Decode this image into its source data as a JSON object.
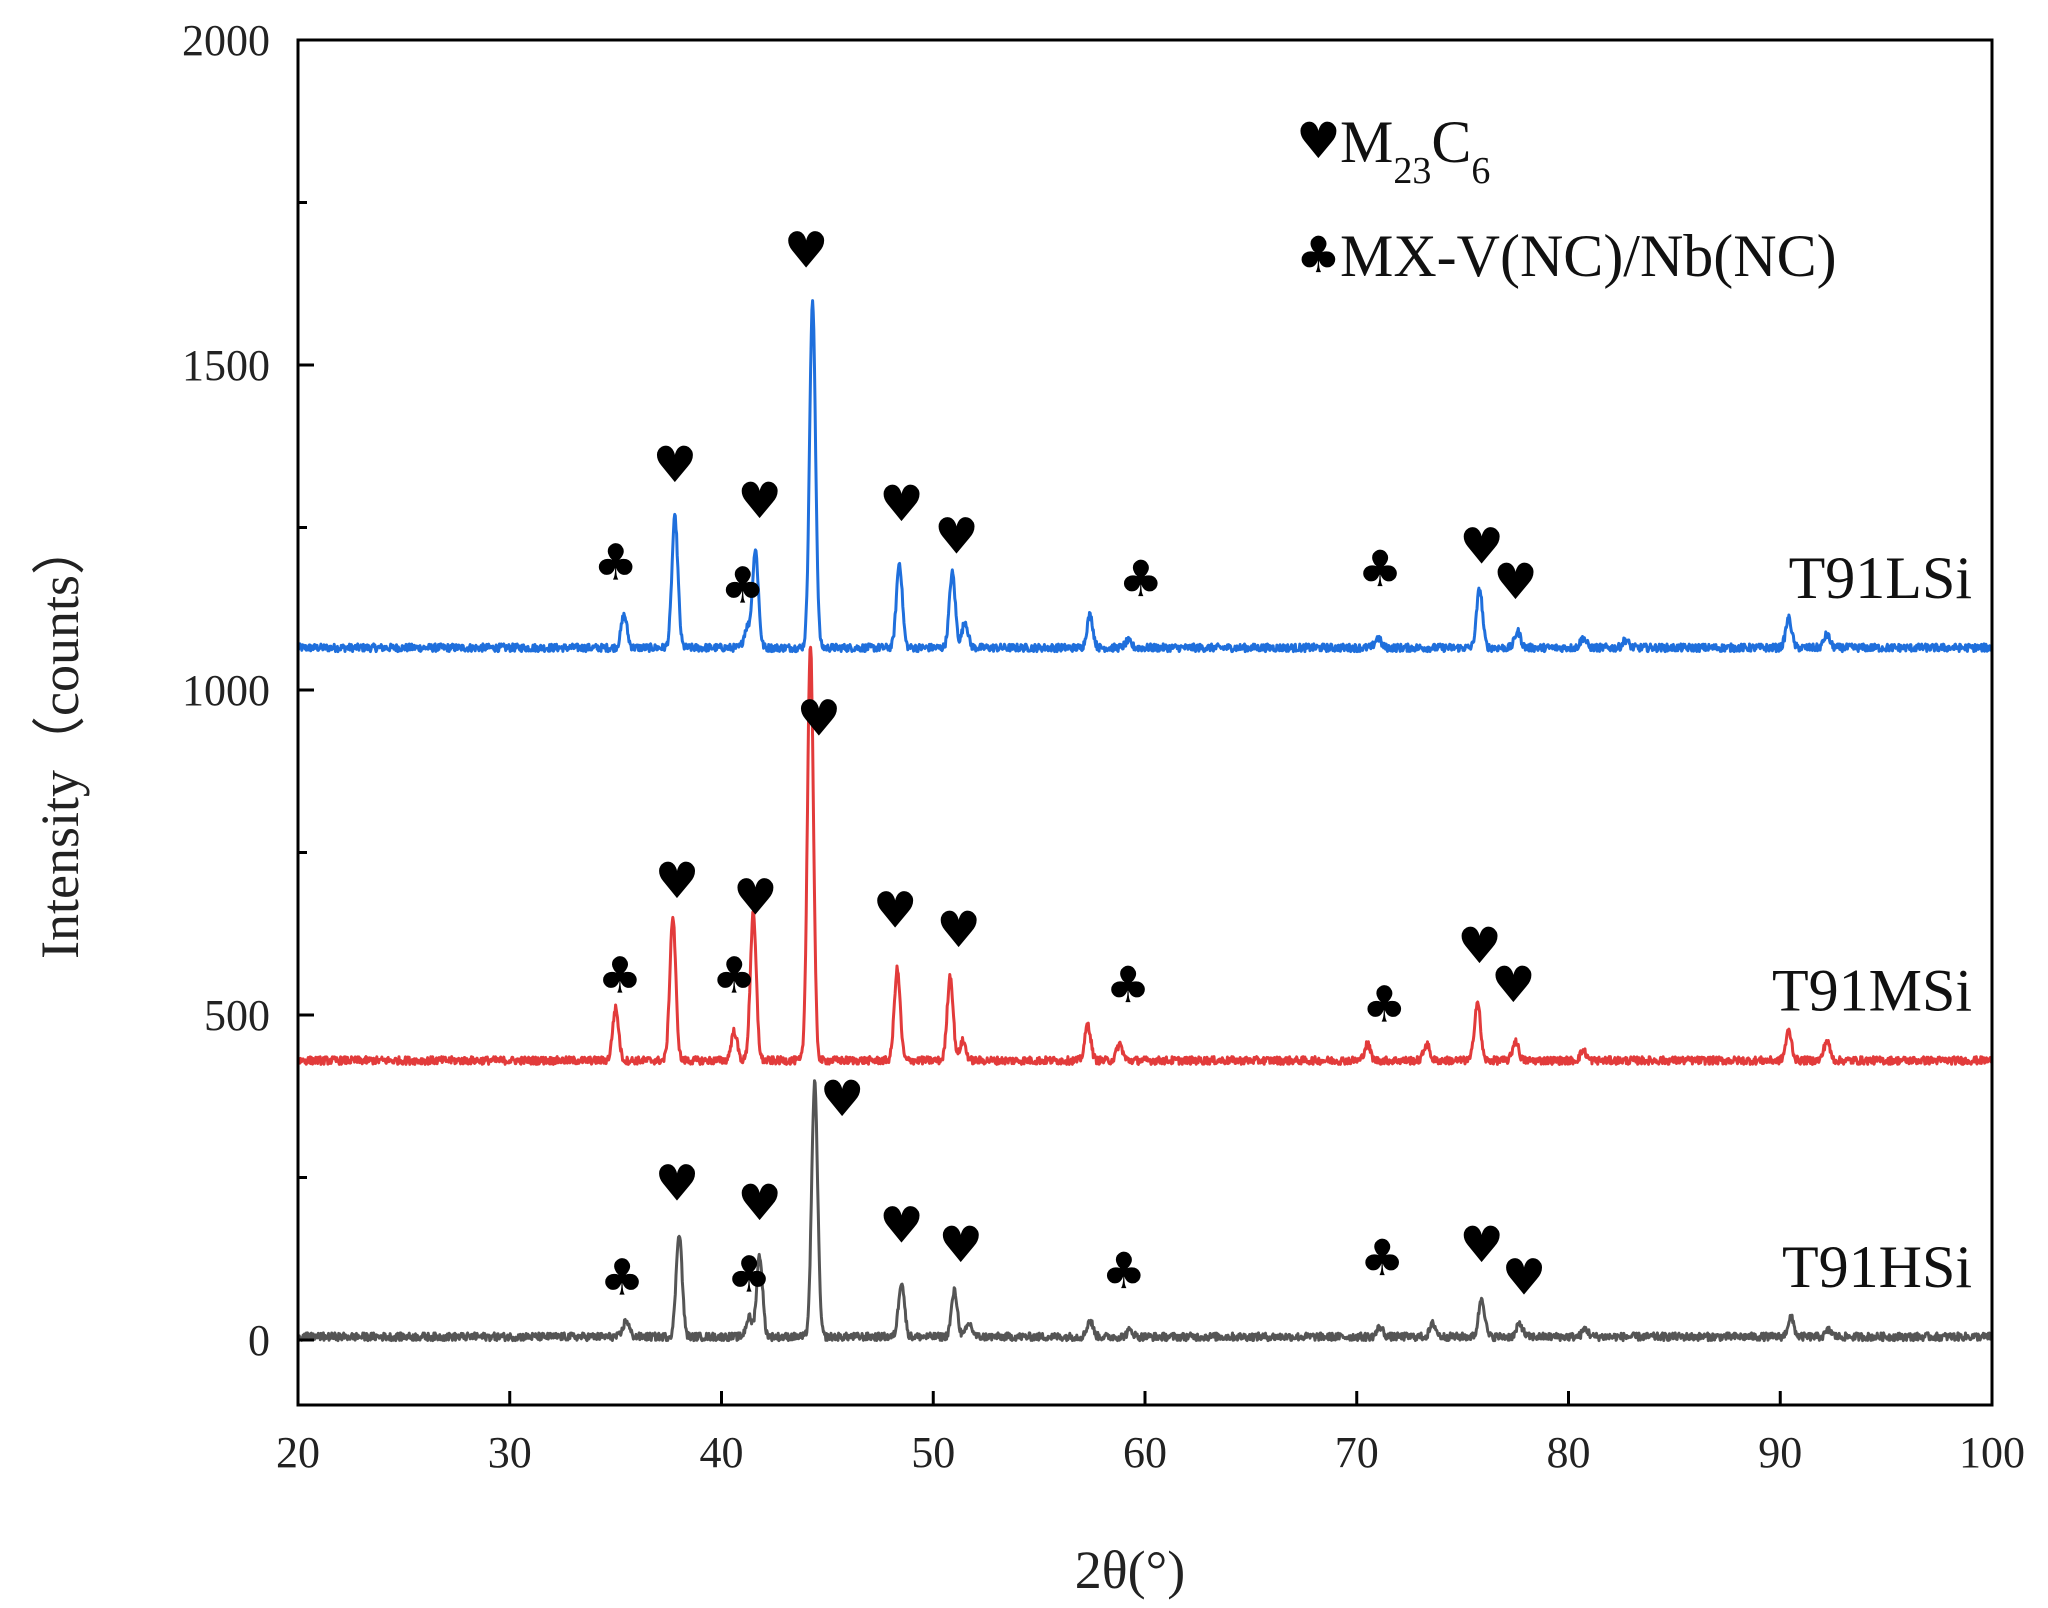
{
  "chart_data": {
    "type": "line",
    "title": "",
    "xlabel": "2θ(°)",
    "ylabel": "Intensity（counts）",
    "xlim": [
      20,
      100
    ],
    "ylim": [
      -100,
      2000
    ],
    "xticks": [
      20,
      30,
      40,
      50,
      60,
      70,
      80,
      90,
      100
    ],
    "yticks": [
      0,
      500,
      1000,
      1500,
      2000
    ],
    "y_minor_ticks": [
      250,
      750,
      1250,
      1750
    ],
    "legend": {
      "position": "top-right",
      "entries": [
        {
          "symbol": "♥",
          "label": "M",
          "sub1": "23",
          "label2": "C",
          "sub2": "6"
        },
        {
          "symbol": "♣",
          "label": "MX-V(NC)/Nb(NC)"
        }
      ]
    },
    "series": [
      {
        "name": "T91LSi",
        "color": "#1f6fdc",
        "baseline": 1065,
        "peaks": [
          [
            35.4,
            50
          ],
          [
            37.8,
            200
          ],
          [
            41.2,
            30
          ],
          [
            41.6,
            150
          ],
          [
            44.3,
            530
          ],
          [
            48.4,
            130
          ],
          [
            50.9,
            115
          ],
          [
            51.5,
            40
          ],
          [
            57.4,
            50
          ],
          [
            59.2,
            10
          ],
          [
            71.0,
            15
          ],
          [
            75.8,
            90
          ],
          [
            77.6,
            25
          ],
          [
            80.7,
            15
          ],
          [
            82.7,
            12
          ],
          [
            90.4,
            45
          ],
          [
            92.2,
            20
          ]
        ],
        "markers": [
          {
            "x": 35.0,
            "y": 1170,
            "symbol": "♣"
          },
          {
            "x": 37.8,
            "y": 1320,
            "symbol": "♥"
          },
          {
            "x": 41.0,
            "y": 1135,
            "symbol": "♣"
          },
          {
            "x": 41.8,
            "y": 1265,
            "symbol": "♥"
          },
          {
            "x": 44.0,
            "y": 1650,
            "symbol": "♥"
          },
          {
            "x": 48.5,
            "y": 1260,
            "symbol": "♥"
          },
          {
            "x": 51.1,
            "y": 1210,
            "symbol": "♥"
          },
          {
            "x": 59.8,
            "y": 1145,
            "symbol": "♣"
          },
          {
            "x": 71.1,
            "y": 1160,
            "symbol": "♣"
          },
          {
            "x": 75.9,
            "y": 1195,
            "symbol": "♥"
          },
          {
            "x": 77.5,
            "y": 1140,
            "symbol": "♥"
          }
        ]
      },
      {
        "name": "T91MSi",
        "color": "#e23b3b",
        "baseline": 430,
        "peaks": [
          [
            35.0,
            80
          ],
          [
            37.7,
            220
          ],
          [
            40.6,
            45
          ],
          [
            41.5,
            225
          ],
          [
            44.2,
            640
          ],
          [
            48.3,
            140
          ],
          [
            50.8,
            130
          ],
          [
            51.4,
            30
          ],
          [
            57.3,
            55
          ],
          [
            58.8,
            25
          ],
          [
            70.5,
            25
          ],
          [
            73.3,
            25
          ],
          [
            75.7,
            90
          ],
          [
            77.5,
            30
          ],
          [
            80.7,
            15
          ],
          [
            90.4,
            45
          ],
          [
            92.2,
            30
          ]
        ],
        "markers": [
          {
            "x": 35.2,
            "y": 535,
            "symbol": "♣"
          },
          {
            "x": 37.9,
            "y": 680,
            "symbol": "♥"
          },
          {
            "x": 40.6,
            "y": 535,
            "symbol": "♣"
          },
          {
            "x": 41.6,
            "y": 655,
            "symbol": "♥"
          },
          {
            "x": 44.6,
            "y": 930,
            "symbol": "♥"
          },
          {
            "x": 48.2,
            "y": 635,
            "symbol": "♥"
          },
          {
            "x": 51.2,
            "y": 605,
            "symbol": "♥"
          },
          {
            "x": 59.2,
            "y": 520,
            "symbol": "♣"
          },
          {
            "x": 71.3,
            "y": 490,
            "symbol": "♣"
          },
          {
            "x": 75.8,
            "y": 580,
            "symbol": "♥"
          },
          {
            "x": 77.4,
            "y": 520,
            "symbol": "♥"
          }
        ]
      },
      {
        "name": "T91HSi",
        "color": "#555555",
        "baseline": 5,
        "peaks": [
          [
            35.5,
            25
          ],
          [
            38.0,
            160
          ],
          [
            41.3,
            30
          ],
          [
            41.8,
            125
          ],
          [
            44.4,
            390
          ],
          [
            48.5,
            85
          ],
          [
            51.0,
            70
          ],
          [
            51.7,
            20
          ],
          [
            57.4,
            25
          ],
          [
            59.3,
            10
          ],
          [
            71.1,
            15
          ],
          [
            73.6,
            20
          ],
          [
            75.9,
            60
          ],
          [
            77.7,
            20
          ],
          [
            80.8,
            12
          ],
          [
            90.5,
            30
          ],
          [
            92.3,
            10
          ]
        ],
        "markers": [
          {
            "x": 35.3,
            "y": 70,
            "symbol": "♣"
          },
          {
            "x": 37.9,
            "y": 215,
            "symbol": "♥"
          },
          {
            "x": 41.3,
            "y": 75,
            "symbol": "♣"
          },
          {
            "x": 41.8,
            "y": 185,
            "symbol": "♥"
          },
          {
            "x": 45.7,
            "y": 345,
            "symbol": "♥"
          },
          {
            "x": 48.5,
            "y": 150,
            "symbol": "♥"
          },
          {
            "x": 51.3,
            "y": 120,
            "symbol": "♥"
          },
          {
            "x": 59.0,
            "y": 80,
            "symbol": "♣"
          },
          {
            "x": 71.2,
            "y": 100,
            "symbol": "♣"
          },
          {
            "x": 75.9,
            "y": 120,
            "symbol": "♥"
          },
          {
            "x": 77.9,
            "y": 70,
            "symbol": "♥"
          }
        ]
      }
    ]
  }
}
